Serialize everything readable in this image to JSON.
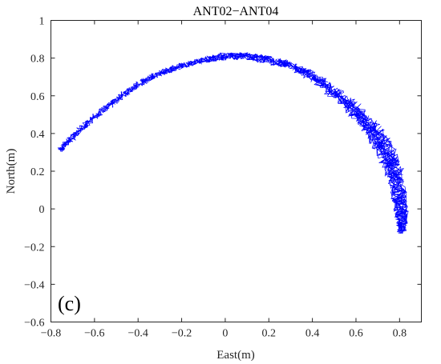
{
  "chart_data": {
    "type": "line",
    "title": "ANT02−ANT04",
    "xlabel": "East(m)",
    "ylabel": "North(m)",
    "xlim": [
      -0.8,
      0.9
    ],
    "ylim": [
      -0.6,
      1.0
    ],
    "xticks": [
      -0.8,
      -0.6,
      -0.4,
      -0.2,
      0,
      0.2,
      0.4,
      0.6,
      0.8
    ],
    "xtick_labels": [
      "−0.8",
      "−0.6",
      "−0.4",
      "−0.2",
      "0",
      "0.2",
      "0.4",
      "0.6",
      "0.8"
    ],
    "yticks": [
      -0.6,
      -0.4,
      -0.2,
      0,
      0.2,
      0.4,
      0.6,
      0.8,
      1
    ],
    "ytick_labels": [
      "−0.6",
      "−0.4",
      "−0.2",
      "0",
      "0.2",
      "0.4",
      "0.6",
      "0.8",
      "1"
    ],
    "grid": false,
    "annotation": "(c)",
    "series": [
      {
        "color": "#0000ff",
        "x": [
          -0.76,
          -0.7,
          -0.6,
          -0.5,
          -0.4,
          -0.3,
          -0.2,
          -0.1,
          0.0,
          0.1,
          0.2,
          0.3,
          0.4,
          0.5,
          0.6,
          0.68,
          0.74,
          0.78,
          0.8,
          0.81,
          0.81
        ],
        "y": [
          0.31,
          0.38,
          0.49,
          0.58,
          0.66,
          0.72,
          0.76,
          0.79,
          0.81,
          0.81,
          0.79,
          0.76,
          0.7,
          0.62,
          0.52,
          0.41,
          0.3,
          0.18,
          0.06,
          -0.04,
          -0.12
        ],
        "noise": [
          0.015,
          0.015,
          0.015,
          0.015,
          0.015,
          0.015,
          0.015,
          0.015,
          0.02,
          0.02,
          0.02,
          0.02,
          0.025,
          0.03,
          0.035,
          0.04,
          0.045,
          0.04,
          0.035,
          0.03,
          0.02
        ]
      }
    ]
  }
}
